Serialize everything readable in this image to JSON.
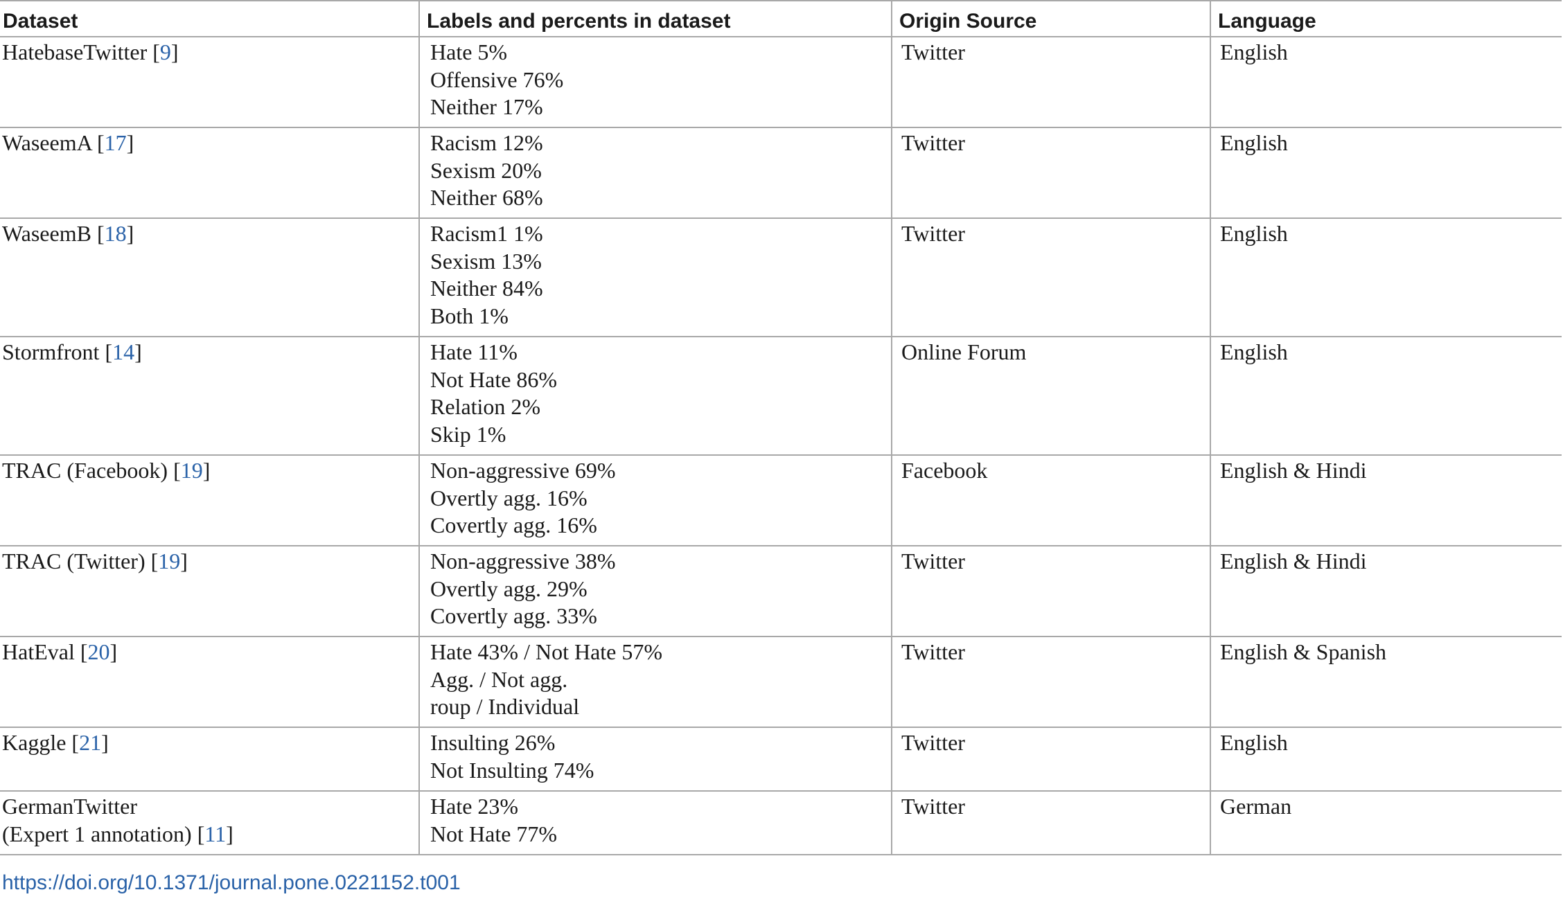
{
  "headers": [
    "Dataset",
    "Labels and percents in dataset",
    "Origin Source",
    "Language"
  ],
  "rows": [
    {
      "dataset": [
        "HatebaseTwitter"
      ],
      "ref": "9",
      "labels": [
        "Hate 5%",
        "Offensive 76%",
        "Neither 17%"
      ],
      "source": "Twitter",
      "language": "English"
    },
    {
      "dataset": [
        "WaseemA"
      ],
      "ref": "17",
      "labels": [
        "Racism 12%",
        "Sexism 20%",
        "Neither 68%"
      ],
      "source": "Twitter",
      "language": "English"
    },
    {
      "dataset": [
        "WaseemB"
      ],
      "ref": "18",
      "labels": [
        "Racism1 1%",
        "Sexism 13%",
        "Neither 84%",
        "Both 1%"
      ],
      "source": "Twitter",
      "language": "English"
    },
    {
      "dataset": [
        "Stormfront"
      ],
      "ref": "14",
      "labels": [
        "Hate 11%",
        "Not Hate 86%",
        "Relation 2%",
        "Skip 1%"
      ],
      "source": "Online Forum",
      "language": "English"
    },
    {
      "dataset": [
        "TRAC (Facebook)"
      ],
      "ref": "19",
      "labels": [
        "Non-aggressive 69%",
        "Overtly agg. 16%",
        "Covertly agg. 16%"
      ],
      "source": "Facebook",
      "language": "English & Hindi"
    },
    {
      "dataset": [
        "TRAC (Twitter)"
      ],
      "ref": "19",
      "labels": [
        "Non-aggressive 38%",
        "Overtly agg. 29%",
        "Covertly agg. 33%"
      ],
      "source": "Twitter",
      "language": "English & Hindi"
    },
    {
      "dataset": [
        "HatEval"
      ],
      "ref": "20",
      "labels": [
        "Hate 43% / Not Hate 57%",
        "Agg. / Not agg.",
        "roup / Individual"
      ],
      "source": "Twitter",
      "language": "English & Spanish"
    },
    {
      "dataset": [
        "Kaggle"
      ],
      "ref": "21",
      "labels": [
        "Insulting 26%",
        "Not Insulting 74%"
      ],
      "source": "Twitter",
      "language": "English"
    },
    {
      "dataset": [
        "GermanTwitter",
        "(Expert 1 annotation)"
      ],
      "ref": "11",
      "labels": [
        "Hate 23%",
        "Not Hate 77%"
      ],
      "source": "Twitter",
      "language": "German"
    }
  ],
  "doi": "https://doi.org/10.1371/journal.pone.0221152.t001"
}
